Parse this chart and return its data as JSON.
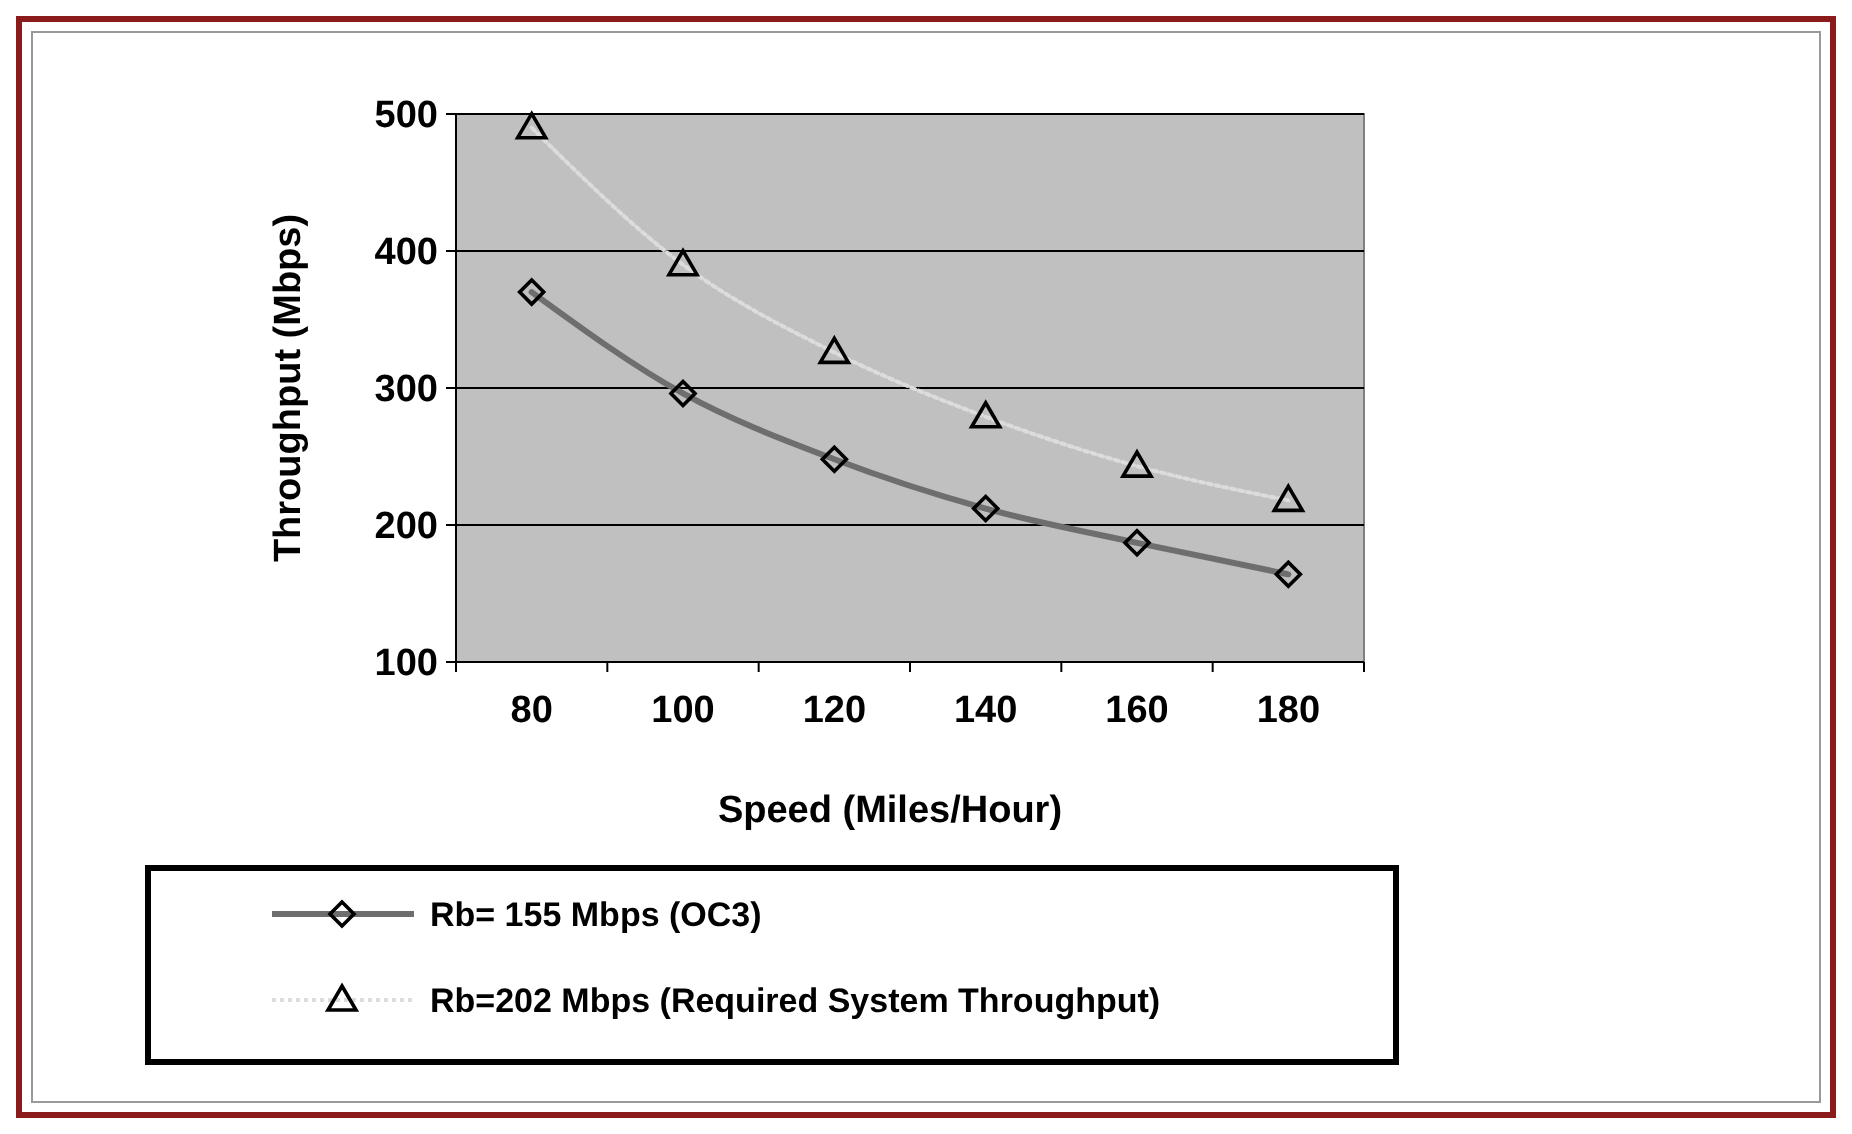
{
  "chart_data": {
    "type": "line",
    "xlabel": "Speed (Miles/Hour)",
    "ylabel": "Throughput (Mbps)",
    "categories": [
      "80",
      "100",
      "120",
      "140",
      "160",
      "180"
    ],
    "series": [
      {
        "name": "Rb= 155 Mbps (OC3)",
        "color": "#6e6e6e",
        "marker": "diamond",
        "line_style": "solid",
        "values": [
          370,
          296,
          248,
          212,
          187,
          164
        ]
      },
      {
        "name": "Rb=202 Mbps (Required System Throughput)",
        "color": "#dcdcdc",
        "marker": "triangle",
        "line_style": "dotted",
        "values": [
          490,
          390,
          326,
          279,
          243,
          218
        ]
      }
    ],
    "ylim": [
      100,
      500
    ],
    "yticks": [
      100,
      200,
      300,
      400,
      500
    ],
    "grid": "y",
    "legend": "bottom"
  }
}
